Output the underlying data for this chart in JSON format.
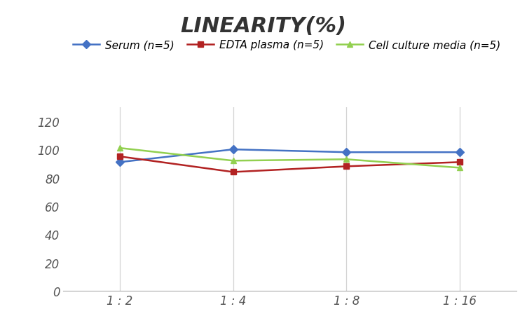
{
  "title": "LINEARITY(%)",
  "x_labels": [
    "1 : 2",
    "1 : 4",
    "1 : 8",
    "1 : 16"
  ],
  "x_positions": [
    0,
    1,
    2,
    3
  ],
  "series": [
    {
      "label": "Serum (n=5)",
      "color": "#4472C4",
      "marker": "D",
      "marker_color": "#4472C4",
      "values": [
        91,
        100,
        98,
        98
      ]
    },
    {
      "label": "EDTA plasma (n=5)",
      "color": "#B22222",
      "marker": "s",
      "marker_color": "#B22222",
      "values": [
        95,
        84,
        88,
        91
      ]
    },
    {
      "label": "Cell culture media (n=5)",
      "color": "#92D050",
      "marker": "^",
      "marker_color": "#92D050",
      "values": [
        101,
        92,
        93,
        87
      ]
    }
  ],
  "ylim": [
    0,
    130
  ],
  "yticks": [
    0,
    20,
    40,
    60,
    80,
    100,
    120
  ],
  "title_fontsize": 22,
  "legend_fontsize": 11,
  "tick_fontsize": 12,
  "background_color": "#ffffff",
  "grid_color": "#d3d3d3"
}
